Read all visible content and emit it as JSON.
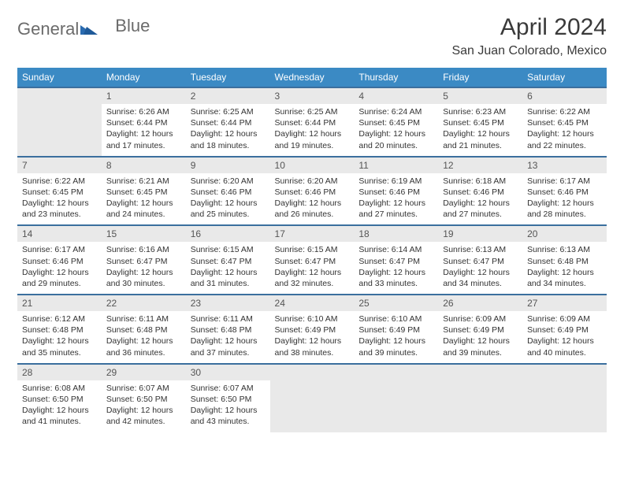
{
  "logo": {
    "text1": "General",
    "text2": "Blue"
  },
  "title": "April 2024",
  "location": "San Juan Colorado, Mexico",
  "colors": {
    "header_bg": "#3b8ac4",
    "header_text": "#ffffff",
    "daynum_bg": "#e9e9e9",
    "rule": "#3b6f9e",
    "logo_gray": "#6b6b6b",
    "logo_blue": "#2a6bb0"
  },
  "day_headers": [
    "Sunday",
    "Monday",
    "Tuesday",
    "Wednesday",
    "Thursday",
    "Friday",
    "Saturday"
  ],
  "weeks": [
    {
      "nums": [
        "",
        "1",
        "2",
        "3",
        "4",
        "5",
        "6"
      ],
      "cells": [
        null,
        {
          "sunrise": "Sunrise: 6:26 AM",
          "sunset": "Sunset: 6:44 PM",
          "day1": "Daylight: 12 hours",
          "day2": "and 17 minutes."
        },
        {
          "sunrise": "Sunrise: 6:25 AM",
          "sunset": "Sunset: 6:44 PM",
          "day1": "Daylight: 12 hours",
          "day2": "and 18 minutes."
        },
        {
          "sunrise": "Sunrise: 6:25 AM",
          "sunset": "Sunset: 6:44 PM",
          "day1": "Daylight: 12 hours",
          "day2": "and 19 minutes."
        },
        {
          "sunrise": "Sunrise: 6:24 AM",
          "sunset": "Sunset: 6:45 PM",
          "day1": "Daylight: 12 hours",
          "day2": "and 20 minutes."
        },
        {
          "sunrise": "Sunrise: 6:23 AM",
          "sunset": "Sunset: 6:45 PM",
          "day1": "Daylight: 12 hours",
          "day2": "and 21 minutes."
        },
        {
          "sunrise": "Sunrise: 6:22 AM",
          "sunset": "Sunset: 6:45 PM",
          "day1": "Daylight: 12 hours",
          "day2": "and 22 minutes."
        }
      ]
    },
    {
      "nums": [
        "7",
        "8",
        "9",
        "10",
        "11",
        "12",
        "13"
      ],
      "cells": [
        {
          "sunrise": "Sunrise: 6:22 AM",
          "sunset": "Sunset: 6:45 PM",
          "day1": "Daylight: 12 hours",
          "day2": "and 23 minutes."
        },
        {
          "sunrise": "Sunrise: 6:21 AM",
          "sunset": "Sunset: 6:45 PM",
          "day1": "Daylight: 12 hours",
          "day2": "and 24 minutes."
        },
        {
          "sunrise": "Sunrise: 6:20 AM",
          "sunset": "Sunset: 6:46 PM",
          "day1": "Daylight: 12 hours",
          "day2": "and 25 minutes."
        },
        {
          "sunrise": "Sunrise: 6:20 AM",
          "sunset": "Sunset: 6:46 PM",
          "day1": "Daylight: 12 hours",
          "day2": "and 26 minutes."
        },
        {
          "sunrise": "Sunrise: 6:19 AM",
          "sunset": "Sunset: 6:46 PM",
          "day1": "Daylight: 12 hours",
          "day2": "and 27 minutes."
        },
        {
          "sunrise": "Sunrise: 6:18 AM",
          "sunset": "Sunset: 6:46 PM",
          "day1": "Daylight: 12 hours",
          "day2": "and 27 minutes."
        },
        {
          "sunrise": "Sunrise: 6:17 AM",
          "sunset": "Sunset: 6:46 PM",
          "day1": "Daylight: 12 hours",
          "day2": "and 28 minutes."
        }
      ]
    },
    {
      "nums": [
        "14",
        "15",
        "16",
        "17",
        "18",
        "19",
        "20"
      ],
      "cells": [
        {
          "sunrise": "Sunrise: 6:17 AM",
          "sunset": "Sunset: 6:46 PM",
          "day1": "Daylight: 12 hours",
          "day2": "and 29 minutes."
        },
        {
          "sunrise": "Sunrise: 6:16 AM",
          "sunset": "Sunset: 6:47 PM",
          "day1": "Daylight: 12 hours",
          "day2": "and 30 minutes."
        },
        {
          "sunrise": "Sunrise: 6:15 AM",
          "sunset": "Sunset: 6:47 PM",
          "day1": "Daylight: 12 hours",
          "day2": "and 31 minutes."
        },
        {
          "sunrise": "Sunrise: 6:15 AM",
          "sunset": "Sunset: 6:47 PM",
          "day1": "Daylight: 12 hours",
          "day2": "and 32 minutes."
        },
        {
          "sunrise": "Sunrise: 6:14 AM",
          "sunset": "Sunset: 6:47 PM",
          "day1": "Daylight: 12 hours",
          "day2": "and 33 minutes."
        },
        {
          "sunrise": "Sunrise: 6:13 AM",
          "sunset": "Sunset: 6:47 PM",
          "day1": "Daylight: 12 hours",
          "day2": "and 34 minutes."
        },
        {
          "sunrise": "Sunrise: 6:13 AM",
          "sunset": "Sunset: 6:48 PM",
          "day1": "Daylight: 12 hours",
          "day2": "and 34 minutes."
        }
      ]
    },
    {
      "nums": [
        "21",
        "22",
        "23",
        "24",
        "25",
        "26",
        "27"
      ],
      "cells": [
        {
          "sunrise": "Sunrise: 6:12 AM",
          "sunset": "Sunset: 6:48 PM",
          "day1": "Daylight: 12 hours",
          "day2": "and 35 minutes."
        },
        {
          "sunrise": "Sunrise: 6:11 AM",
          "sunset": "Sunset: 6:48 PM",
          "day1": "Daylight: 12 hours",
          "day2": "and 36 minutes."
        },
        {
          "sunrise": "Sunrise: 6:11 AM",
          "sunset": "Sunset: 6:48 PM",
          "day1": "Daylight: 12 hours",
          "day2": "and 37 minutes."
        },
        {
          "sunrise": "Sunrise: 6:10 AM",
          "sunset": "Sunset: 6:49 PM",
          "day1": "Daylight: 12 hours",
          "day2": "and 38 minutes."
        },
        {
          "sunrise": "Sunrise: 6:10 AM",
          "sunset": "Sunset: 6:49 PM",
          "day1": "Daylight: 12 hours",
          "day2": "and 39 minutes."
        },
        {
          "sunrise": "Sunrise: 6:09 AM",
          "sunset": "Sunset: 6:49 PM",
          "day1": "Daylight: 12 hours",
          "day2": "and 39 minutes."
        },
        {
          "sunrise": "Sunrise: 6:09 AM",
          "sunset": "Sunset: 6:49 PM",
          "day1": "Daylight: 12 hours",
          "day2": "and 40 minutes."
        }
      ]
    },
    {
      "nums": [
        "28",
        "29",
        "30",
        "",
        "",
        "",
        ""
      ],
      "cells": [
        {
          "sunrise": "Sunrise: 6:08 AM",
          "sunset": "Sunset: 6:50 PM",
          "day1": "Daylight: 12 hours",
          "day2": "and 41 minutes."
        },
        {
          "sunrise": "Sunrise: 6:07 AM",
          "sunset": "Sunset: 6:50 PM",
          "day1": "Daylight: 12 hours",
          "day2": "and 42 minutes."
        },
        {
          "sunrise": "Sunrise: 6:07 AM",
          "sunset": "Sunset: 6:50 PM",
          "day1": "Daylight: 12 hours",
          "day2": "and 43 minutes."
        },
        null,
        null,
        null,
        null
      ]
    }
  ]
}
